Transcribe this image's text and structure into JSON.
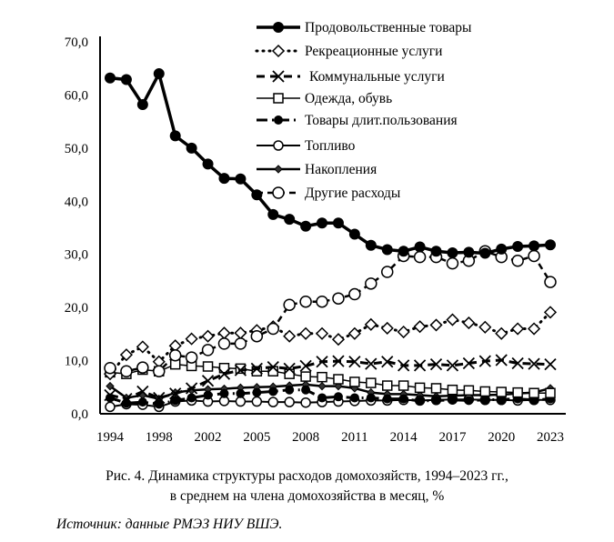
{
  "chart_data": {
    "type": "line",
    "title": "",
    "xlabel": "",
    "ylabel": "",
    "ylim": [
      0,
      70
    ],
    "y_ticks": [
      "0,0",
      "10,0",
      "20,0",
      "30,0",
      "40,0",
      "50,0",
      "60,0",
      "70,0"
    ],
    "grid": false,
    "legend_position": "top-right",
    "x": [
      1994,
      1995,
      1996,
      1998,
      2000,
      2001,
      2002,
      2003,
      2004,
      2005,
      2006,
      2007,
      2008,
      2009,
      2010,
      2011,
      2012,
      2013,
      2014,
      2015,
      2016,
      2017,
      2018,
      2019,
      2020,
      2021,
      2022,
      2023
    ],
    "x_tick_labels": [
      "1994",
      "1998",
      "2002",
      "2005",
      "2008",
      "2011",
      "2014",
      "2017",
      "2020",
      "2023"
    ],
    "series": [
      {
        "name": "Продовольственные товары",
        "style": "food",
        "values": [
          63.2,
          62.9,
          58.2,
          64.0,
          52.3,
          50.0,
          47.0,
          44.3,
          44.2,
          41.2,
          37.5,
          36.6,
          35.3,
          35.9,
          35.9,
          33.8,
          31.7,
          30.9,
          30.6,
          31.4,
          30.6,
          30.3,
          30.4,
          30.2,
          31.0,
          31.5,
          31.6,
          31.8
        ]
      },
      {
        "name": "Рекреационные услуги",
        "style": "recreation",
        "values": [
          7.5,
          11.1,
          12.6,
          9.8,
          12.8,
          14.1,
          14.6,
          15.2,
          15.2,
          15.7,
          16.4,
          14.6,
          15.1,
          15.1,
          14.0,
          15.1,
          16.8,
          16.1,
          15.4,
          16.4,
          16.7,
          17.7,
          17.1,
          16.3,
          15.1,
          16.0,
          16.0,
          19.1
        ]
      },
      {
        "name": "Коммунальные услуги",
        "style": "communal",
        "values": [
          3.5,
          2.8,
          4.2,
          3.0,
          3.8,
          4.8,
          6.2,
          7.5,
          8.2,
          8.5,
          8.8,
          8.5,
          9.0,
          9.8,
          9.9,
          9.8,
          9.4,
          9.8,
          9.1,
          9.1,
          9.3,
          9.1,
          9.5,
          9.9,
          10.1,
          9.5,
          9.4,
          9.3
        ]
      },
      {
        "name": "Одежда, обувь",
        "style": "clothing",
        "values": [
          7.8,
          7.5,
          8.3,
          8.0,
          9.3,
          9.0,
          8.9,
          8.6,
          8.5,
          8.0,
          8.0,
          7.5,
          7.0,
          6.9,
          6.5,
          6.0,
          5.8,
          5.3,
          5.3,
          4.9,
          4.8,
          4.5,
          4.4,
          4.2,
          4.1,
          4.0,
          3.9,
          3.9
        ]
      },
      {
        "name": "Товары длит.пользования",
        "style": "durables",
        "values": [
          3.0,
          2.0,
          2.2,
          1.8,
          2.5,
          3.0,
          3.5,
          3.8,
          3.8,
          4.0,
          4.2,
          4.5,
          4.5,
          3.0,
          3.2,
          3.0,
          3.0,
          2.8,
          2.8,
          2.4,
          2.5,
          2.6,
          2.5,
          2.6,
          2.7,
          2.8,
          2.6,
          2.8
        ]
      },
      {
        "name": "Топливо",
        "style": "fuel",
        "values": [
          1.3,
          1.8,
          1.7,
          1.3,
          2.3,
          2.5,
          2.3,
          2.4,
          2.3,
          2.3,
          2.2,
          2.2,
          2.1,
          2.2,
          2.3,
          2.4,
          2.5,
          2.5,
          2.6,
          2.5,
          2.6,
          2.7,
          2.7,
          2.6,
          2.6,
          2.5,
          2.6,
          2.6
        ]
      },
      {
        "name": "Накопления",
        "style": "savings",
        "values": [
          5.2,
          3.0,
          3.5,
          2.8,
          4.0,
          4.4,
          4.6,
          4.7,
          4.9,
          5.0,
          5.1,
          5.3,
          5.5,
          5.2,
          5.2,
          4.8,
          4.0,
          3.7,
          3.7,
          3.5,
          3.3,
          3.4,
          3.5,
          3.5,
          3.6,
          3.8,
          4.0,
          4.8
        ]
      },
      {
        "name": "Другие расходы",
        "style": "other",
        "values": [
          8.6,
          8.0,
          8.7,
          8.0,
          11.0,
          10.6,
          12.0,
          13.2,
          13.2,
          14.6,
          16.0,
          20.5,
          21.1,
          21.1,
          21.7,
          22.5,
          24.5,
          26.7,
          29.7,
          29.5,
          29.5,
          28.3,
          28.8,
          30.6,
          29.5,
          28.8,
          29.7,
          24.8
        ]
      }
    ]
  },
  "caption": {
    "line1": "Рис. 4. Динамика структуры расходов домохозяйств, 1994–2023 гг.,",
    "line2": "в среднем на члена домохозяйства в месяц, %"
  },
  "source": "Источник: данные РМЭЗ НИУ ВШЭ."
}
